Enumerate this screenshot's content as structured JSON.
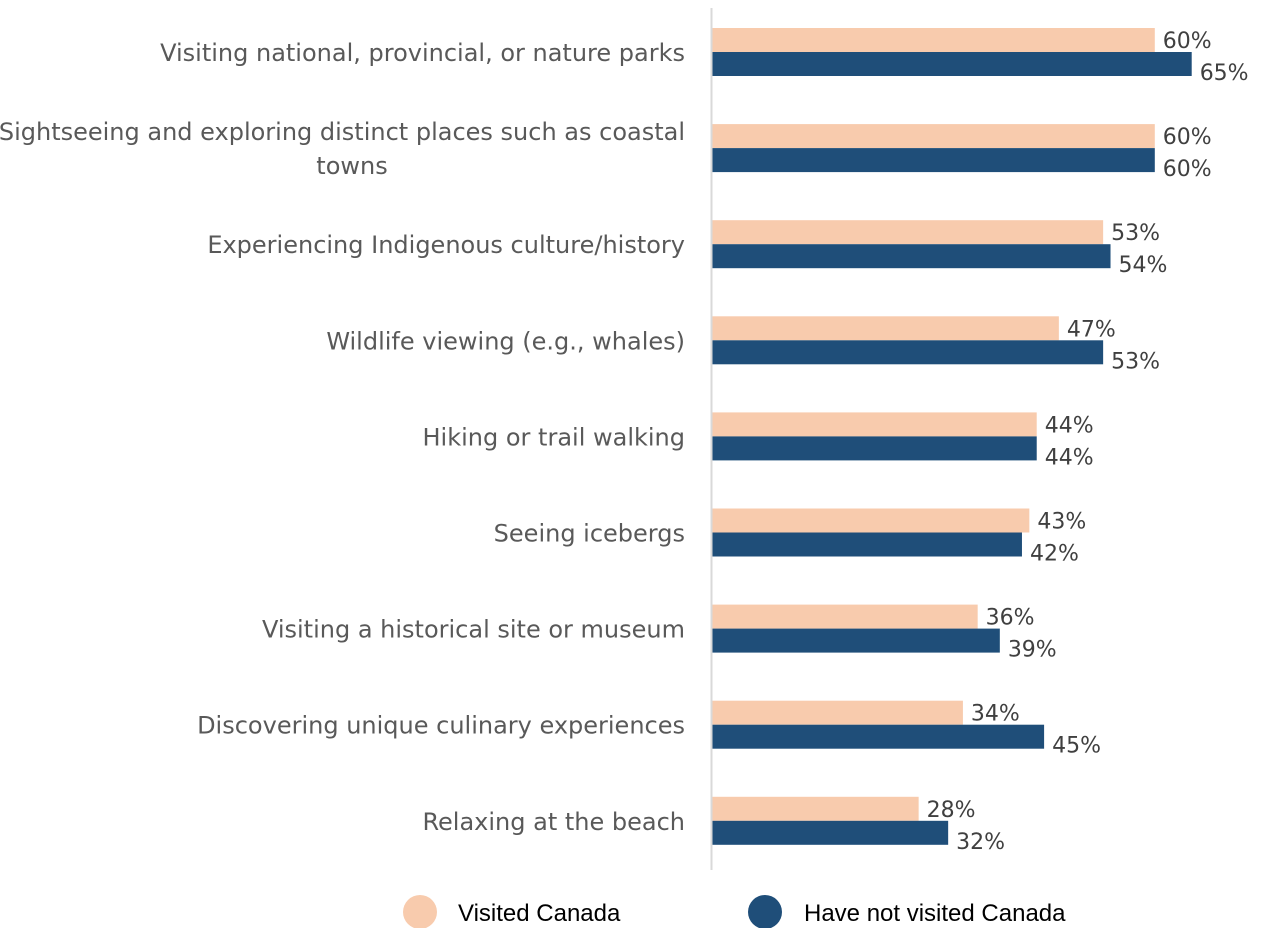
{
  "chart_data": {
    "type": "bar",
    "orientation": "horizontal",
    "title": "",
    "xlabel": "",
    "ylabel": "",
    "xlim": [
      0,
      100
    ],
    "grid": false,
    "legend_position": "bottom",
    "categories": [
      "Visiting national, provincial, or nature parks",
      "Sightseeing and exploring distinct places such as coastal towns",
      "Experiencing Indigenous culture/history",
      "Wildlife viewing (e.g., whales)",
      "Hiking or trail walking",
      "Seeing icebergs",
      "Visiting a historical site or museum",
      "Discovering unique culinary experiences",
      "Relaxing at the beach"
    ],
    "category_lines": [
      [
        "Visiting national, provincial, or nature parks"
      ],
      [
        "Sightseeing and exploring distinct places such as coastal",
        "towns"
      ],
      [
        "Experiencing Indigenous culture/history"
      ],
      [
        "Wildlife viewing (e.g., whales)"
      ],
      [
        "Hiking or trail walking"
      ],
      [
        "Seeing icebergs"
      ],
      [
        "Visiting a historical site or museum"
      ],
      [
        "Discovering unique culinary experiences"
      ],
      [
        "Relaxing at the beach"
      ]
    ],
    "series": [
      {
        "name": "Visited Canada",
        "color": "#F8CBAD",
        "values": [
          60,
          60,
          53,
          47,
          44,
          43,
          36,
          34,
          28
        ],
        "labels": [
          "60%",
          "60%",
          "53%",
          "47%",
          "44%",
          "43%",
          "36%",
          "34%",
          "28%"
        ]
      },
      {
        "name": "Have not visited Canada",
        "color": "#1F4E79",
        "values": [
          65,
          60,
          54,
          53,
          44,
          42,
          39,
          45,
          32
        ],
        "labels": [
          "65%",
          "60%",
          "54%",
          "53%",
          "44%",
          "42%",
          "39%",
          "45%",
          "32%"
        ]
      }
    ]
  },
  "colors": {
    "axis_line": "#D9D9D9",
    "category_text": "#595959",
    "value_text": "#404040"
  }
}
